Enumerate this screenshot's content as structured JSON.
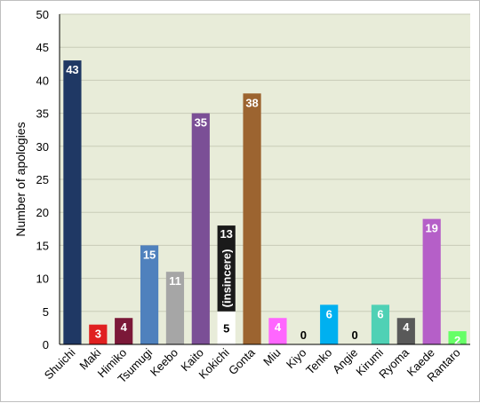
{
  "chart_data": {
    "type": "bar",
    "ylabel": "Number of apologies",
    "ylim": [
      0,
      50
    ],
    "yticks": [
      0,
      5,
      10,
      15,
      20,
      25,
      30,
      35,
      40,
      45,
      50
    ],
    "grid": true,
    "plot_background": "#e8ecd9",
    "categories": [
      "Shuichi",
      "Maki",
      "Himiko",
      "Tsumugi",
      "Keebo",
      "Kaito",
      "Kokichi",
      "Gonta",
      "Miu",
      "Kiyo",
      "Tenko",
      "Angie",
      "Kirumi",
      "Ryoma",
      "Kaede",
      "Rantaro"
    ],
    "values": [
      43,
      3,
      4,
      15,
      11,
      35,
      18,
      38,
      4,
      0,
      6,
      0,
      6,
      4,
      19,
      2
    ],
    "colors": [
      "#1f3864",
      "#e02020",
      "#7b1838",
      "#4f81bd",
      "#a6a6a6",
      "#7b4f96",
      "#1a1a1a",
      "#9c6430",
      "#ff66ff",
      "#999999",
      "#00b0f0",
      "#999999",
      "#4fd1b5",
      "#595959",
      "#b55fc8",
      "#66ff66"
    ],
    "label_colors": [
      "#ffffff",
      "#ffffff",
      "#ffffff",
      "#ffffff",
      "#ffffff",
      "#ffffff",
      "#ffffff",
      "#ffffff",
      "#ffffff",
      "#000000",
      "#ffffff",
      "#000000",
      "#ffffff",
      "#ffffff",
      "#ffffff",
      "#ffffff"
    ],
    "stacked": {
      "category": "Kokichi",
      "segments": [
        {
          "value": 5,
          "color": "#ffffff",
          "label": "5",
          "label_color": "#000000"
        },
        {
          "value": 13,
          "color": "#1a1a1a",
          "label": "13",
          "label_color": "#ffffff",
          "annotation": "(insincere)"
        }
      ]
    }
  }
}
